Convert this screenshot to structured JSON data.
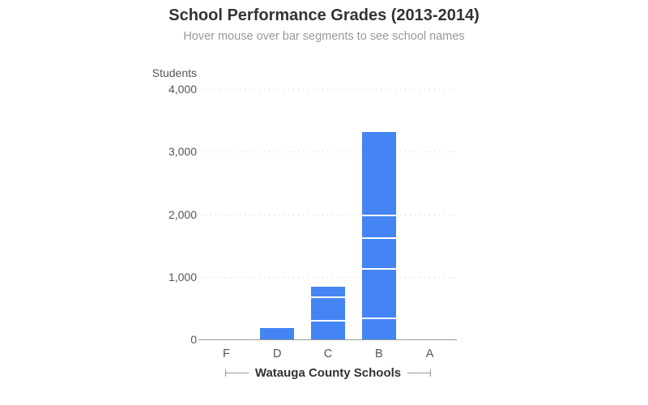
{
  "chart_data": {
    "type": "bar",
    "subtype": "stacked-vertical",
    "title": "School Performance Grades (2013-2014)",
    "subtitle": "Hover mouse over bar segments to see school names",
    "ylabel": "Students",
    "xlabel": "Watauga County Schools",
    "categories": [
      "F",
      "D",
      "C",
      "B",
      "A"
    ],
    "bars": [
      {
        "category": "F",
        "segments": [],
        "total": 0
      },
      {
        "category": "D",
        "segments": [
          175
        ],
        "total": 175
      },
      {
        "category": "C",
        "segments": [
          285,
          380,
          175
        ],
        "total": 840
      },
      {
        "category": "B",
        "segments": [
          330,
          780,
          495,
          360,
          1345
        ],
        "total": 3310
      },
      {
        "category": "A",
        "segments": [],
        "total": 0
      }
    ],
    "segments_note_order": "bottom-to-top",
    "ylim": [
      0,
      4000
    ],
    "yticks": [
      0,
      1000,
      2000,
      3000,
      4000
    ],
    "ytick_labels": [
      "0",
      "1,000",
      "2,000",
      "3,000",
      "4,000"
    ],
    "grid": "dotted-horizontal",
    "legend": "none",
    "bar_color": "#4484f3",
    "segment_divider_color": "#ffffff"
  }
}
